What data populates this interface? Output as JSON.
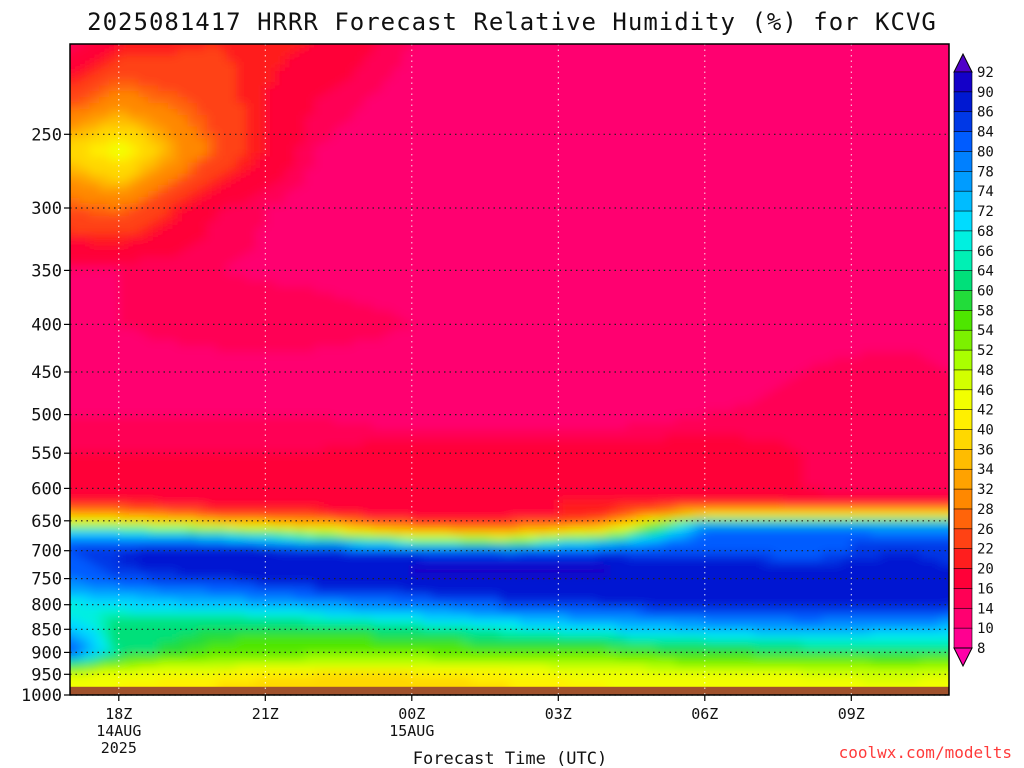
{
  "chart_data": {
    "type": "heatmap",
    "title": "2025081417 HRRR Forecast Relative Humidity (%) for KCVG",
    "xlabel": "Forecast Time (UTC)",
    "ylabel": "",
    "x_ticks": [
      {
        "label": "18Z",
        "sub1": "14AUG",
        "sub2": "2025"
      },
      {
        "label": "21Z",
        "sub1": "",
        "sub2": ""
      },
      {
        "label": "00Z",
        "sub1": "15AUG",
        "sub2": ""
      },
      {
        "label": "03Z",
        "sub1": "",
        "sub2": ""
      },
      {
        "label": "06Z",
        "sub1": "",
        "sub2": ""
      },
      {
        "label": "09Z",
        "sub1": "",
        "sub2": ""
      }
    ],
    "x_hours": [
      18,
      21,
      24,
      27,
      30,
      33
    ],
    "xlim": [
      17,
      35
    ],
    "y_ticks": [
      250,
      300,
      350,
      400,
      450,
      500,
      550,
      600,
      650,
      700,
      750,
      800,
      850,
      900,
      950,
      1000
    ],
    "ylim_hpa": [
      200,
      1000
    ],
    "below_ground_hpa": 980,
    "below_ground_color": "#a0522d",
    "profile_levels_hpa": [
      200,
      230,
      260,
      300,
      350,
      400,
      450,
      500,
      550,
      600,
      620,
      640,
      655,
      670,
      685,
      700,
      725,
      750,
      775,
      800,
      825,
      850,
      875,
      900,
      925,
      950,
      975
    ],
    "profile_hours": [
      17,
      18,
      20,
      22,
      24,
      26,
      28,
      30,
      32,
      34,
      35
    ],
    "rh_percent": [
      [
        14,
        20,
        22,
        20,
        14,
        12,
        12,
        12,
        14,
        12,
        12
      ],
      [
        25,
        30,
        24,
        16,
        12,
        11,
        12,
        14,
        14,
        12,
        12
      ],
      [
        38,
        44,
        26,
        14,
        11,
        10,
        10,
        12,
        12,
        12,
        12
      ],
      [
        26,
        28,
        16,
        12,
        11,
        11,
        12,
        12,
        12,
        12,
        12
      ],
      [
        14,
        14,
        14,
        13,
        12,
        12,
        12,
        12,
        12,
        12,
        12
      ],
      [
        13,
        14,
        16,
        16,
        14,
        12,
        11,
        12,
        12,
        12,
        12
      ],
      [
        12,
        12,
        12,
        12,
        12,
        12,
        12,
        12,
        14,
        16,
        14
      ],
      [
        14,
        14,
        14,
        14,
        12,
        12,
        12,
        14,
        15,
        16,
        14
      ],
      [
        16,
        16,
        16,
        16,
        18,
        18,
        18,
        18,
        16,
        14,
        14
      ],
      [
        16,
        16,
        16,
        16,
        18,
        18,
        20,
        18,
        16,
        14,
        14
      ],
      [
        20,
        20,
        18,
        18,
        20,
        20,
        20,
        20,
        18,
        18,
        18
      ],
      [
        34,
        32,
        24,
        22,
        18,
        18,
        22,
        40,
        40,
        40,
        40
      ],
      [
        48,
        48,
        40,
        34,
        24,
        24,
        30,
        76,
        76,
        74,
        74
      ],
      [
        70,
        70,
        64,
        52,
        38,
        36,
        48,
        82,
        82,
        80,
        80
      ],
      [
        82,
        82,
        80,
        74,
        60,
        56,
        70,
        84,
        84,
        84,
        84
      ],
      [
        84,
        86,
        88,
        86,
        84,
        82,
        84,
        84,
        82,
        86,
        84
      ],
      [
        82,
        86,
        88,
        90,
        90,
        90,
        90,
        88,
        86,
        88,
        86
      ],
      [
        80,
        84,
        86,
        88,
        90,
        90,
        90,
        88,
        88,
        88,
        86
      ],
      [
        74,
        76,
        80,
        84,
        86,
        88,
        88,
        88,
        88,
        88,
        86
      ],
      [
        66,
        70,
        72,
        76,
        80,
        84,
        86,
        88,
        88,
        88,
        86
      ],
      [
        68,
        64,
        64,
        66,
        70,
        74,
        78,
        80,
        82,
        82,
        80
      ],
      [
        72,
        62,
        60,
        60,
        62,
        66,
        70,
        74,
        76,
        74,
        72
      ],
      [
        80,
        62,
        58,
        56,
        58,
        60,
        62,
        64,
        66,
        66,
        66
      ],
      [
        84,
        62,
        56,
        54,
        54,
        56,
        56,
        58,
        60,
        60,
        60
      ],
      [
        62,
        52,
        50,
        48,
        48,
        48,
        50,
        52,
        52,
        54,
        52
      ],
      [
        48,
        44,
        42,
        40,
        40,
        42,
        44,
        46,
        46,
        48,
        46
      ],
      [
        44,
        42,
        40,
        38,
        38,
        40,
        42,
        44,
        44,
        46,
        44
      ]
    ],
    "colorbar": {
      "levels": [
        8,
        10,
        14,
        16,
        20,
        22,
        26,
        28,
        32,
        34,
        36,
        40,
        42,
        46,
        48,
        52,
        54,
        58,
        60,
        64,
        66,
        68,
        72,
        74,
        78,
        80,
        84,
        86,
        90,
        92
      ],
      "colors": [
        "#ff00a8",
        "#ff0090",
        "#ff0070",
        "#ff0055",
        "#ff0038",
        "#ff1e1e",
        "#ff4214",
        "#ff640a",
        "#ff8800",
        "#ffa200",
        "#ffbc00",
        "#ffd800",
        "#fff000",
        "#f2ff00",
        "#d2ff00",
        "#aaff00",
        "#7cf000",
        "#4ee600",
        "#22dc3a",
        "#00e07a",
        "#00f0b4",
        "#00f0e0",
        "#00dcff",
        "#00bcff",
        "#009cff",
        "#0080ff",
        "#005cff",
        "#0038e6",
        "#0018d2",
        "#1400c8",
        "#5000c8"
      ]
    },
    "grid": true,
    "legend": "right"
  },
  "credit": "coolwx.com/modelts"
}
